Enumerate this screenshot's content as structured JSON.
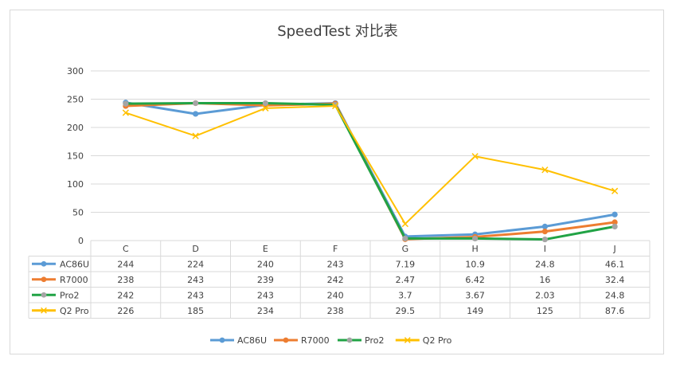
{
  "chart_data": {
    "type": "line",
    "title": "SpeedTest 对比表",
    "categories": [
      "C",
      "D",
      "E",
      "F",
      "G",
      "H",
      "I",
      "J"
    ],
    "ylim": [
      0,
      300
    ],
    "yticks": [
      0,
      50,
      100,
      150,
      200,
      250,
      300
    ],
    "grid": true,
    "legend_position": "bottom",
    "data_table": true,
    "series": [
      {
        "name": "AC86U",
        "color": "#5b9bd5",
        "marker": "circle",
        "values": [
          244,
          224,
          240,
          243,
          7.19,
          10.9,
          24.8,
          46.1
        ],
        "labels": [
          "244",
          "224",
          "240",
          "243",
          "7.19",
          "10.9",
          "24.8",
          "46.1"
        ]
      },
      {
        "name": "R7000",
        "color": "#ed7d31",
        "marker": "circle",
        "values": [
          238,
          243,
          239,
          242,
          2.47,
          6.42,
          16,
          32.4
        ],
        "labels": [
          "238",
          "243",
          "239",
          "242",
          "2.47",
          "6.42",
          "16",
          "32.4"
        ]
      },
      {
        "name": "Pro2",
        "color": "#21a345",
        "marker": "circle",
        "marker_color": "#a5a5a5",
        "values": [
          242,
          243,
          243,
          240,
          3.7,
          3.67,
          2.03,
          24.8
        ],
        "labels": [
          "242",
          "243",
          "243",
          "240",
          "3.7",
          "3.67",
          "2.03",
          "24.8"
        ]
      },
      {
        "name": "Q2 Pro",
        "color": "#ffc000",
        "marker": "x",
        "values": [
          226,
          185,
          234,
          238,
          29.5,
          149,
          125,
          87.6
        ],
        "labels": [
          "226",
          "185",
          "234",
          "238",
          "29.5",
          "149",
          "125",
          "87.6"
        ]
      }
    ]
  }
}
